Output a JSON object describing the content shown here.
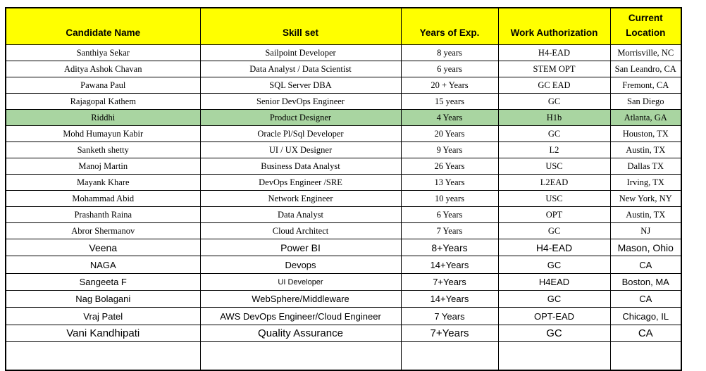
{
  "colors": {
    "header_bg": "#FFFF00",
    "highlight_row_bg": "#A9D5A1",
    "border": "#000000",
    "text": "#000000"
  },
  "table": {
    "columns": [
      {
        "key": "name",
        "label": "Candidate Name"
      },
      {
        "key": "skill",
        "label": "Skill set"
      },
      {
        "key": "exp",
        "label": "Years of Exp."
      },
      {
        "key": "auth",
        "label": "Work Authorization"
      },
      {
        "key": "location",
        "label": "Current Location"
      }
    ],
    "rows": [
      {
        "name": "Santhiya Sekar",
        "skill": "Sailpoint Developer",
        "exp": "8 years",
        "auth": "H4-EAD",
        "location": "Morrisville, NC",
        "highlight": false
      },
      {
        "name": "Aditya Ashok Chavan",
        "skill": "Data Analyst / Data Scientist",
        "exp": "6 years",
        "auth": "STEM OPT",
        "location": "San Leandro, CA",
        "highlight": false
      },
      {
        "name": "Pawana Paul",
        "skill": "SQL Server DBA",
        "exp": "20 + Years",
        "auth": "GC EAD",
        "location": "Fremont, CA",
        "highlight": false
      },
      {
        "name": "Rajagopal Kathem",
        "skill": "Senior DevOps Engineer",
        "exp": "15 years",
        "auth": "GC",
        "location": "San Diego",
        "highlight": false
      },
      {
        "name": "Riddhi",
        "skill": "Product Designer",
        "exp": "4 Years",
        "auth": "H1b",
        "location": "Atlanta, GA",
        "highlight": true
      },
      {
        "name": "Mohd Humayun Kabir",
        "skill": "Oracle Pl/Sql Developer",
        "exp": "20 Years",
        "auth": "GC",
        "location": "Houston, TX",
        "highlight": false
      },
      {
        "name": "Sanketh shetty",
        "skill": "UI / UX Designer",
        "exp": "9 Years",
        "auth": "L2",
        "location": "Austin, TX",
        "highlight": false
      },
      {
        "name": "Manoj Martin",
        "skill": "Business Data Analyst",
        "exp": "26 Years",
        "auth": "USC",
        "location": "Dallas TX",
        "highlight": false
      },
      {
        "name": "Mayank Khare",
        "skill": "DevOps Engineer /SRE",
        "exp": "13 Years",
        "auth": "L2EAD",
        "location": "Irving, TX",
        "highlight": false
      },
      {
        "name": "Mohammad Abid",
        "skill": "Network Engineer",
        "exp": "10 years",
        "auth": "USC",
        "location": "New York, NY",
        "highlight": false
      },
      {
        "name": "Prashanth Raina",
        "skill": "Data Analyst",
        "exp": "6 Years",
        "auth": "OPT",
        "location": "Austin, TX",
        "highlight": false
      },
      {
        "name": "Abror Shermanov",
        "skill": "Cloud Architect",
        "exp": "7 Years",
        "auth": "GC",
        "location": "NJ",
        "highlight": false
      },
      {
        "name": "Veena",
        "skill": "Power BI",
        "exp": "8+Years",
        "auth": "H4-EAD",
        "location": "Mason, Ohio",
        "highlight": false
      },
      {
        "name": "NAGA",
        "skill": "Devops",
        "exp": "14+Years",
        "auth": "GC",
        "location": "CA",
        "highlight": false
      },
      {
        "name": "Sangeeta F",
        "skill": "UI Developer",
        "exp": "7+Years",
        "auth": "H4EAD",
        "location": "Boston, MA",
        "highlight": false
      },
      {
        "name": "Nag Bolagani",
        "skill": "WebSphere/Middleware",
        "exp": "14+Years",
        "auth": "GC",
        "location": "CA",
        "highlight": false
      },
      {
        "name": "Vraj Patel",
        "skill": "AWS DevOps Engineer/Cloud Engineer",
        "exp": "7 Years",
        "auth": "OPT-EAD",
        "location": "Chicago, IL",
        "highlight": false
      },
      {
        "name": "Vani Kandhipati",
        "skill": "Quality Assurance",
        "exp": "7+Years",
        "auth": "GC",
        "location": "CA",
        "highlight": false
      }
    ]
  }
}
